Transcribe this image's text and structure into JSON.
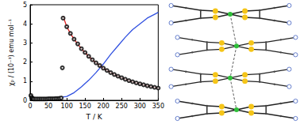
{
  "chart_data": {
    "type": "scatter",
    "x_label": "T / K",
    "y_label": "χₚ / (10⁻³) emu mol⁻¹",
    "xlim": [
      0,
      350
    ],
    "xticks": [
      0,
      50,
      100,
      150,
      200,
      250,
      300,
      350
    ],
    "ylim": [
      0,
      5
    ],
    "yticks": [
      0,
      1,
      2,
      3,
      4,
      5
    ],
    "grid": false,
    "series": [
      {
        "type": "line",
        "color": "#3050e0",
        "line_style": "solid",
        "x": [
          0,
          20,
          40,
          60,
          80,
          100,
          120,
          140,
          160,
          180,
          200,
          220,
          240,
          260,
          280,
          300,
          320,
          340,
          350
        ],
        "values": [
          0.1,
          0.1,
          0.1,
          0.12,
          0.15,
          0.2,
          0.4,
          0.7,
          1.05,
          1.45,
          1.9,
          2.4,
          2.85,
          3.3,
          3.7,
          4.0,
          4.3,
          4.5,
          4.6
        ]
      },
      {
        "type": "line",
        "color": "#e02020",
        "line_style": "solid",
        "x": [
          90,
          100,
          110,
          120,
          130,
          140,
          150,
          160,
          170,
          180,
          190,
          200,
          220,
          240,
          260,
          280,
          300,
          320,
          340,
          350
        ],
        "values": [
          4.4,
          3.85,
          3.5,
          3.2,
          2.95,
          2.7,
          2.5,
          2.3,
          2.12,
          1.96,
          1.82,
          1.68,
          1.45,
          1.26,
          1.1,
          0.97,
          0.86,
          0.76,
          0.68,
          0.64
        ]
      },
      {
        "type": "scatter",
        "color": "#000000",
        "marker": "open_circle",
        "x": [
          2,
          4,
          6,
          8,
          10,
          15,
          20,
          25,
          30,
          35,
          40,
          45,
          50,
          55,
          60,
          65,
          70,
          75,
          80,
          85,
          88,
          90,
          100,
          110,
          120,
          130,
          140,
          150,
          160,
          170,
          180,
          190,
          200,
          210,
          220,
          230,
          240,
          250,
          260,
          270,
          280,
          290,
          300,
          310,
          320,
          330,
          340,
          350
        ],
        "values": [
          0.25,
          0.15,
          0.1,
          0.08,
          0.07,
          0.07,
          0.07,
          0.07,
          0.07,
          0.07,
          0.07,
          0.07,
          0.08,
          0.08,
          0.08,
          0.08,
          0.09,
          0.09,
          0.1,
          0.12,
          1.7,
          4.3,
          3.85,
          3.5,
          3.2,
          2.95,
          2.7,
          2.5,
          2.3,
          2.12,
          1.96,
          1.82,
          1.68,
          1.56,
          1.45,
          1.35,
          1.26,
          1.18,
          1.1,
          1.03,
          0.97,
          0.91,
          0.86,
          0.81,
          0.76,
          0.72,
          0.68,
          0.64
        ]
      }
    ]
  },
  "diagram": {
    "molecules": 4
  }
}
